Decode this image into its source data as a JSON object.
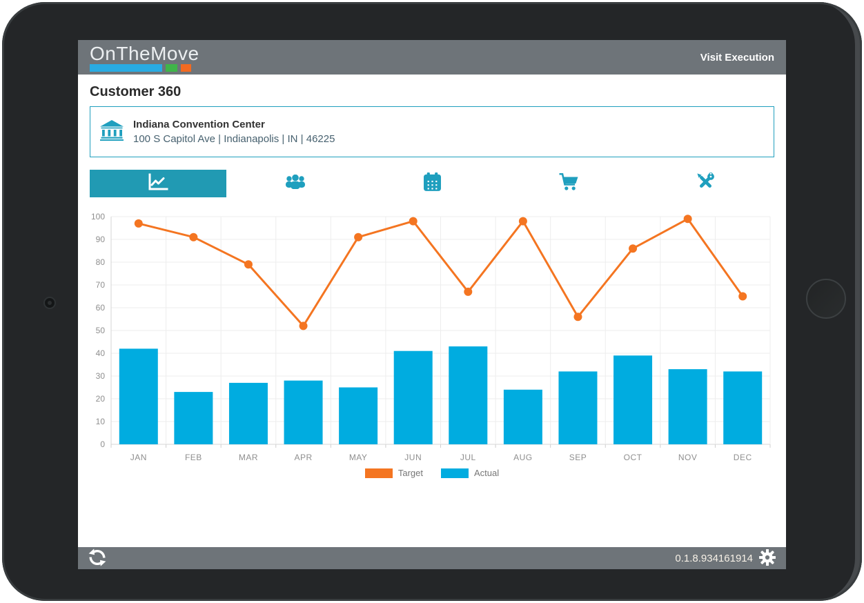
{
  "theme": {
    "header_bg": "#6e7479",
    "accent_teal": "#1f9fbe",
    "active_tab_bg": "#219ab3",
    "bar_color": "#00ace0",
    "line_color": "#f47521",
    "logo_bar_colors": [
      "#29abe2",
      "#3fb549",
      "#f26a21"
    ]
  },
  "header": {
    "logo": "OnTheMove",
    "nav_title": "Visit Execution"
  },
  "page_title": "Customer 360",
  "customer_card": {
    "icon": "bank-icon",
    "name": "Indiana Convention Center",
    "address": "100 S Capitol Ave | Indianapolis | IN | 46225"
  },
  "tabs": [
    {
      "name": "performance",
      "icon": "chart-line-icon",
      "active": true
    },
    {
      "name": "contacts",
      "icon": "people-icon",
      "active": false
    },
    {
      "name": "calendar",
      "icon": "calendar-icon",
      "active": false
    },
    {
      "name": "orders",
      "icon": "cart-icon",
      "active": false
    },
    {
      "name": "tools",
      "icon": "tools-icon",
      "active": false
    }
  ],
  "chart_data": {
    "type": "combo-bar-line",
    "categories": [
      "JAN",
      "FEB",
      "MAR",
      "APR",
      "MAY",
      "JUN",
      "JUL",
      "AUG",
      "SEP",
      "OCT",
      "NOV",
      "DEC"
    ],
    "series": [
      {
        "name": "Target",
        "type": "line",
        "color": "#f47521",
        "values": [
          97,
          91,
          79,
          52,
          91,
          98,
          67,
          98,
          56,
          86,
          99,
          65
        ]
      },
      {
        "name": "Actual",
        "type": "bar",
        "color": "#00ace0",
        "values": [
          42,
          23,
          27,
          28,
          25,
          41,
          43,
          24,
          32,
          39,
          33,
          32
        ]
      }
    ],
    "ylim": [
      0,
      100
    ],
    "ytick_step": 10,
    "grid": true,
    "legend_position": "bottom"
  },
  "footer": {
    "version": "0.1.8.934161914"
  }
}
